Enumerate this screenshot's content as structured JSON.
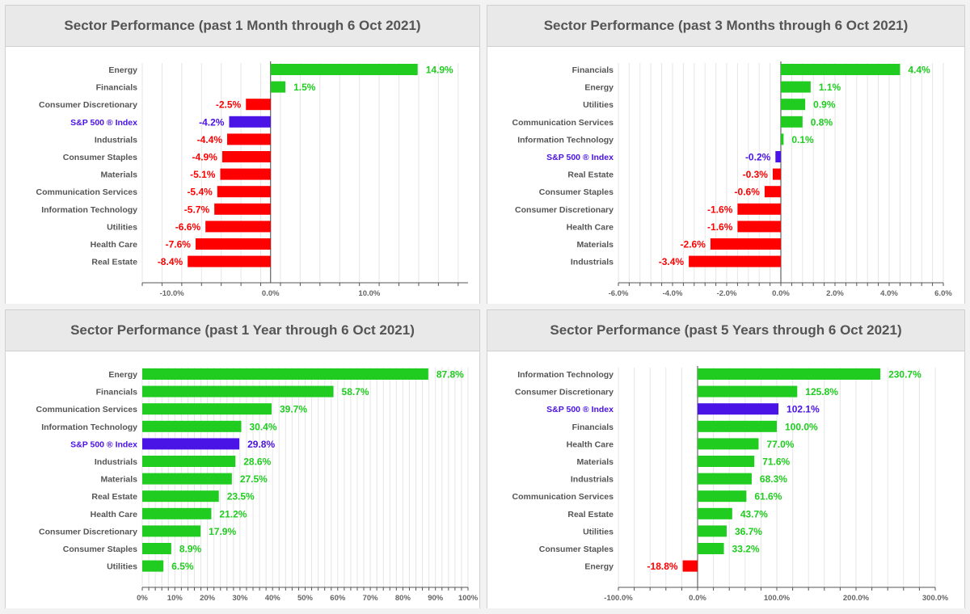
{
  "colors": {
    "positive": "#1fcc1f",
    "negative": "#ff0000",
    "index": "#4b14e6",
    "positive_label": "#1fcc1f",
    "negative_label": "#ff0000",
    "index_label": "#4b14e6"
  },
  "chart_data": [
    {
      "type": "bar",
      "orientation": "horizontal",
      "title": "Sector Performance (past 1 Month through 6 Oct 2021)",
      "categories": [
        "Energy",
        "Financials",
        "Consumer Discretionary",
        "S&P 500 ® Index",
        "Industrials",
        "Consumer Staples",
        "Materials",
        "Communication Services",
        "Information Technology",
        "Utilities",
        "Health Care",
        "Real Estate"
      ],
      "values": [
        14.9,
        1.5,
        -2.5,
        -4.2,
        -4.4,
        -4.9,
        -5.1,
        -5.4,
        -5.7,
        -6.6,
        -7.6,
        -8.4
      ],
      "value_labels": [
        "14.9%",
        "1.5%",
        "-2.5%",
        "-4.2%",
        "-4.4%",
        "-4.9%",
        "-5.1%",
        "-5.4%",
        "-5.7%",
        "-6.6%",
        "-7.6%",
        "-8.4%"
      ],
      "highlight": "S&P 500 ® Index",
      "xlim": [
        -13,
        20
      ],
      "ticks": [
        -10,
        0,
        10
      ],
      "tick_labels": [
        "-10.0%",
        "0.0%",
        "10.0%"
      ],
      "grid": true
    },
    {
      "type": "bar",
      "orientation": "horizontal",
      "title": "Sector Performance (past 3 Months through 6 Oct 2021)",
      "categories": [
        "Financials",
        "Energy",
        "Utilities",
        "Communication Services",
        "Information Technology",
        "S&P 500 ® Index",
        "Real Estate",
        "Consumer Staples",
        "Consumer Discretionary",
        "Health Care",
        "Materials",
        "Industrials"
      ],
      "values": [
        4.4,
        1.1,
        0.9,
        0.8,
        0.1,
        -0.2,
        -0.3,
        -0.6,
        -1.6,
        -1.6,
        -2.6,
        -3.4
      ],
      "value_labels": [
        "4.4%",
        "1.1%",
        "0.9%",
        "0.8%",
        "0.1%",
        "-0.2%",
        "-0.3%",
        "-0.6%",
        "-1.6%",
        "-1.6%",
        "-2.6%",
        "-3.4%"
      ],
      "highlight": "S&P 500 ® Index",
      "xlim": [
        -6,
        6
      ],
      "ticks": [
        -6,
        -4,
        -2,
        0,
        2,
        4,
        6
      ],
      "tick_labels": [
        "-6.0%",
        "-4.0%",
        "-2.0%",
        "0.0%",
        "2.0%",
        "4.0%",
        "6.0%"
      ],
      "grid": true
    },
    {
      "type": "bar",
      "orientation": "horizontal",
      "title": "Sector Performance (past 1 Year through 6 Oct 2021)",
      "categories": [
        "Energy",
        "Financials",
        "Communication Services",
        "Information Technology",
        "S&P 500 ® Index",
        "Industrials",
        "Materials",
        "Real Estate",
        "Health Care",
        "Consumer Discretionary",
        "Consumer Staples",
        "Utilities"
      ],
      "values": [
        87.8,
        58.7,
        39.7,
        30.4,
        29.8,
        28.6,
        27.5,
        23.5,
        21.2,
        17.9,
        8.9,
        6.5
      ],
      "value_labels": [
        "87.8%",
        "58.7%",
        "39.7%",
        "30.4%",
        "29.8%",
        "28.6%",
        "27.5%",
        "23.5%",
        "21.2%",
        "17.9%",
        "8.9%",
        "6.5%"
      ],
      "highlight": "S&P 500 ® Index",
      "xlim": [
        0,
        100
      ],
      "ticks": [
        0,
        10,
        20,
        30,
        40,
        50,
        60,
        70,
        80,
        90,
        100
      ],
      "tick_labels": [
        "0%",
        "10%",
        "20%",
        "30%",
        "40%",
        "50%",
        "60%",
        "70%",
        "80%",
        "90%",
        "100%"
      ],
      "grid": true
    },
    {
      "type": "bar",
      "orientation": "horizontal",
      "title": "Sector Performance (past 5 Years through 6 Oct 2021)",
      "categories": [
        "Information Technology",
        "Consumer Discretionary",
        "S&P 500 ® Index",
        "Financials",
        "Health Care",
        "Materials",
        "Industrials",
        "Communication Services",
        "Real Estate",
        "Utilities",
        "Consumer Staples",
        "Energy"
      ],
      "values": [
        230.7,
        125.8,
        102.1,
        100.0,
        77.0,
        71.6,
        68.3,
        61.6,
        43.7,
        36.7,
        33.2,
        -18.8
      ],
      "value_labels": [
        "230.7%",
        "125.8%",
        "102.1%",
        "100.0%",
        "77.0%",
        "71.6%",
        "68.3%",
        "61.6%",
        "43.7%",
        "36.7%",
        "33.2%",
        "-18.8%"
      ],
      "highlight": "S&P 500 ® Index",
      "xlim": [
        -100,
        300
      ],
      "ticks": [
        -100,
        0,
        100,
        200,
        300
      ],
      "tick_labels": [
        "-100.0%",
        "0.0%",
        "100.0%",
        "200.0%",
        "300.0%"
      ],
      "grid": true
    }
  ]
}
